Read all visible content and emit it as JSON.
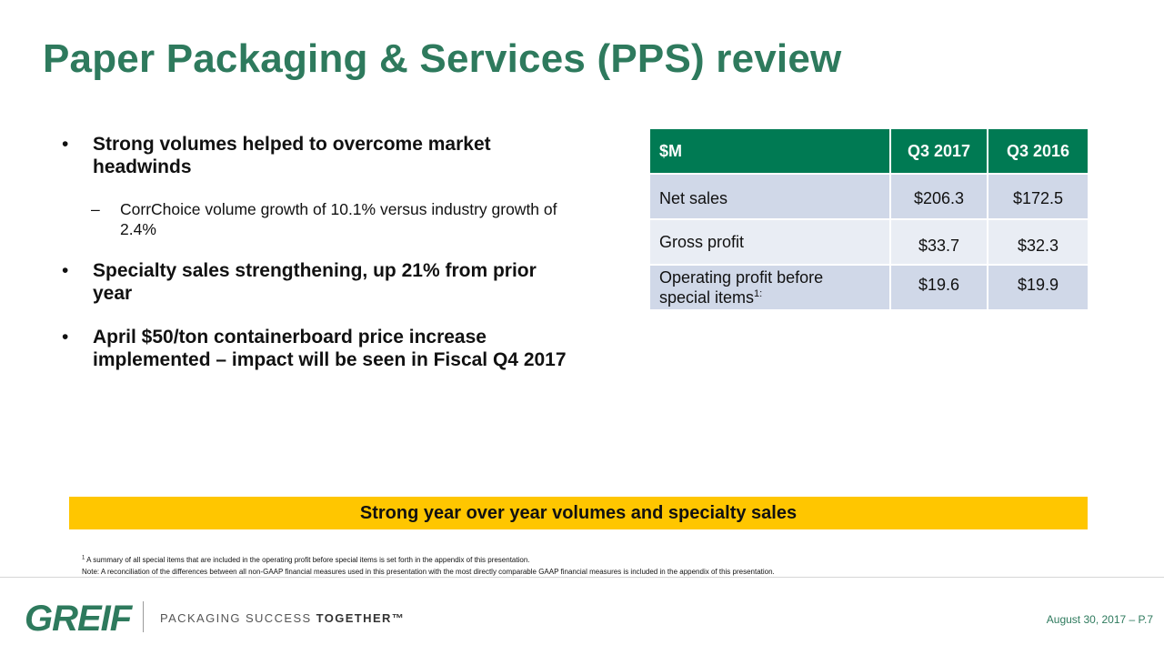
{
  "title": "Paper Packaging & Services (PPS) review",
  "bullets": [
    {
      "marker": "•",
      "text": "Strong volumes helped to overcome market headwinds"
    },
    {
      "marker": "–",
      "text": "CorrChoice volume growth of 10.1% versus industry growth of 2.4%"
    },
    {
      "marker": "•",
      "text": "Specialty sales strengthening, up 21% from prior year"
    },
    {
      "marker": "•",
      "text": "April $50/ton containerboard price increase implemented – impact will be seen in Fiscal Q4 2017"
    }
  ],
  "table": {
    "headers": [
      "$M",
      "Q3 2017",
      "Q3 2016"
    ],
    "rows": [
      {
        "label": "Net sales",
        "q3_2017": "$206.3",
        "q3_2016": "$172.5"
      },
      {
        "label": "Gross profit",
        "q3_2017": "$33.7",
        "q3_2016": "$32.3"
      },
      {
        "label_line1": "Operating profit before",
        "label_line2": "special items",
        "footnote_marker": "1:",
        "q3_2017": "$19.6",
        "q3_2016": "$19.9"
      }
    ]
  },
  "banner": "Strong year over year volumes and specialty sales",
  "footnotes": {
    "fn1_marker": "1",
    "fn1_text": " A summary of all special items that are included in the operating profit before special items is set forth in the appendix of this presentation.",
    "note": "Note: A reconciliation of the differences between all non-GAAP financial measures used in this presentation with the most directly comparable GAAP financial measures is included in the appendix of this presentation."
  },
  "footer": {
    "logo_text": "GREIF",
    "tagline_part1": "PACKAGING SUCCESS ",
    "tagline_part2": "TOGETHER™",
    "date_page": "August 30, 2017 – P.7"
  },
  "colors": {
    "title_green": "#2e7a5d",
    "table_header": "#007a53",
    "row_dark": "#d0d8e8",
    "row_light": "#e9edf4",
    "banner": "#ffc600"
  }
}
